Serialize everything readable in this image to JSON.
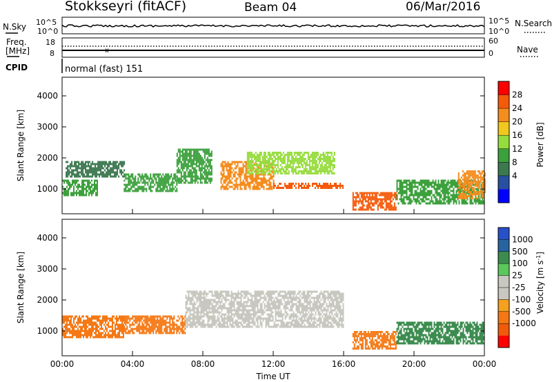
{
  "header": {
    "station": "Stokkseyri (fitACF)",
    "beam": "Beam 04",
    "date": "06/Mar/2016"
  },
  "noise_panel": {
    "left_label": "N.Sky",
    "right_label": "N.Search",
    "left_ticks": [
      "10^5",
      "10^0"
    ],
    "right_ticks": [
      "10^5",
      "10^0"
    ]
  },
  "freq_panel": {
    "left_label_1": "Freq.",
    "left_label_2": "[MHz]",
    "left_ticks": [
      "18",
      "8"
    ],
    "right_label": "Nave",
    "right_ticks": [
      "60",
      "0"
    ]
  },
  "cpid_panel": {
    "label": "CPID",
    "value": "normal (fast) 151"
  },
  "power_colorbar": {
    "label": "Power [dB]",
    "ticks": [
      "28",
      "24",
      "20",
      "16",
      "12",
      "8",
      "4"
    ],
    "colors": [
      "#ff0000",
      "#f55a0a",
      "#f58c1e",
      "#f0c81e",
      "#96dc3c",
      "#3ca03c",
      "#3c7850",
      "#2850a0",
      "#0000ff"
    ]
  },
  "velocity_colorbar": {
    "label": "Velocity [m s",
    "label_sup": "-1",
    "label_end": "]",
    "ticks": [
      "1000",
      "500",
      "100",
      "25",
      "-25",
      "-100",
      "-500",
      "-1000"
    ],
    "colors": [
      "#2850c8",
      "#2864a0",
      "#3c8c50",
      "#5ac85a",
      "#c8c8c0",
      "#c8c8c0",
      "#f5a01e",
      "#f57814",
      "#f05a0a",
      "#ff0000"
    ]
  },
  "chart_data": [
    {
      "type": "heatmap",
      "title": "",
      "xlabel": "",
      "ylabel": "Slant Range [km]",
      "ylim": [
        200,
        4600
      ],
      "yticks": [
        "4000",
        "3000",
        "2000",
        "1000"
      ],
      "xlim_hours": [
        0,
        24
      ],
      "colorbar": "Power [dB]",
      "bands": [
        {
          "start_h": 0.0,
          "end_h": 2.0,
          "r_low": 800,
          "r_high": 1300,
          "power_db": 12
        },
        {
          "start_h": 0.2,
          "end_h": 3.5,
          "r_low": 1400,
          "r_high": 1900,
          "power_db": 8
        },
        {
          "start_h": 3.5,
          "end_h": 6.5,
          "r_low": 900,
          "r_high": 1500,
          "power_db": 14
        },
        {
          "start_h": 6.5,
          "end_h": 8.5,
          "r_low": 1200,
          "r_high": 2300,
          "power_db": 12
        },
        {
          "start_h": 9.0,
          "end_h": 12.0,
          "r_low": 1000,
          "r_high": 1900,
          "power_db": 26
        },
        {
          "start_h": 12.0,
          "end_h": 16.0,
          "r_low": 1000,
          "r_high": 1200,
          "power_db": 28
        },
        {
          "start_h": 10.5,
          "end_h": 15.5,
          "r_low": 1500,
          "r_high": 2200,
          "power_db": 16
        },
        {
          "start_h": 16.5,
          "end_h": 19.0,
          "r_low": 300,
          "r_high": 900,
          "power_db": 30
        },
        {
          "start_h": 19.0,
          "end_h": 24.0,
          "r_low": 500,
          "r_high": 1300,
          "power_db": 14
        },
        {
          "start_h": 22.5,
          "end_h": 24.0,
          "r_low": 700,
          "r_high": 1600,
          "power_db": 26
        }
      ]
    },
    {
      "type": "heatmap",
      "title": "",
      "xlabel": "Time UT",
      "ylabel": "Slant Range [km]",
      "ylim": [
        200,
        4600
      ],
      "yticks": [
        "4000",
        "3000",
        "2000",
        "1000"
      ],
      "xticks": [
        "00:00",
        "04:00",
        "08:00",
        "12:00",
        "16:00",
        "20:00",
        "00:00"
      ],
      "xlim_hours": [
        0,
        24
      ],
      "colorbar": "Velocity [m s-1]",
      "bands": [
        {
          "start_h": 0.0,
          "end_h": 3.5,
          "r_low": 800,
          "r_high": 1500,
          "velocity": -200
        },
        {
          "start_h": 3.5,
          "end_h": 7.0,
          "r_low": 900,
          "r_high": 1500,
          "velocity": -150
        },
        {
          "start_h": 7.0,
          "end_h": 16.0,
          "r_low": 1100,
          "r_high": 2300,
          "velocity": 0
        },
        {
          "start_h": 16.5,
          "end_h": 19.0,
          "r_low": 400,
          "r_high": 1000,
          "velocity": -400
        },
        {
          "start_h": 19.0,
          "end_h": 24.0,
          "r_low": 600,
          "r_high": 1300,
          "velocity": 300
        }
      ]
    }
  ]
}
